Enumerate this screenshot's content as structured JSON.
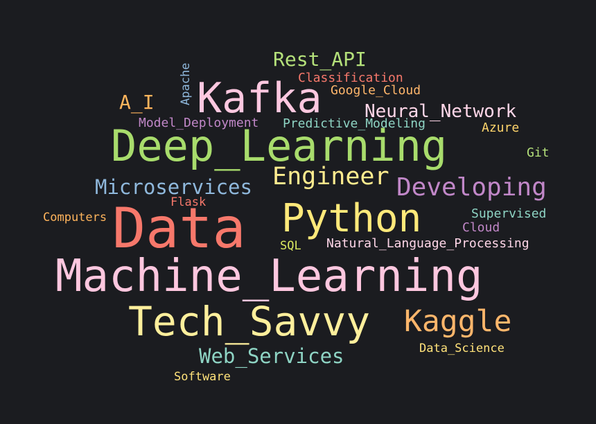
{
  "words": [
    {
      "text": "Data",
      "color": "#f7786b"
    },
    {
      "text": "Machine_Learning",
      "color": "#ffc7df"
    },
    {
      "text": "Deep_Learning",
      "color": "#a8dc6c"
    },
    {
      "text": "Python",
      "color": "#ffe97a"
    },
    {
      "text": "Tech_Savvy",
      "color": "#ffef9c"
    },
    {
      "text": "Kafka",
      "color": "#ffc8e0"
    },
    {
      "text": "Kaggle",
      "color": "#ffb66b"
    },
    {
      "text": "Developing",
      "color": "#c187c8"
    },
    {
      "text": "Engineer",
      "color": "#ffec8f"
    },
    {
      "text": "Microservices",
      "color": "#8fb8dc"
    },
    {
      "text": "Web_Services",
      "color": "#8ed4c4"
    },
    {
      "text": "Neural_Network",
      "color": "#ffd6e8"
    },
    {
      "text": "Rest_API",
      "color": "#b4e07a"
    },
    {
      "text": "A_I",
      "color": "#ffb45c"
    },
    {
      "text": "Classification",
      "color": "#f7786b"
    },
    {
      "text": "Google_Cloud",
      "color": "#ffb66b"
    },
    {
      "text": "Predictive_Modeling",
      "color": "#8ed4c4"
    },
    {
      "text": "Model_Deployment",
      "color": "#c187c8"
    },
    {
      "text": "Natural_Language_Processing",
      "color": "#ffd6e8"
    },
    {
      "text": "Supervised",
      "color": "#8ed4c4"
    },
    {
      "text": "Cloud",
      "color": "#c187c8"
    },
    {
      "text": "Azure",
      "color": "#ffd46b"
    },
    {
      "text": "Git",
      "color": "#b4e07a"
    },
    {
      "text": "Flask",
      "color": "#f7786b"
    },
    {
      "text": "Computers",
      "color": "#ffb45c"
    },
    {
      "text": "SQL",
      "color": "#d9e860"
    },
    {
      "text": "Data_Science",
      "color": "#ffe27a"
    },
    {
      "text": "Software",
      "color": "#ffe27a"
    },
    {
      "text": "Apache",
      "color": "#8fb8dc"
    }
  ]
}
